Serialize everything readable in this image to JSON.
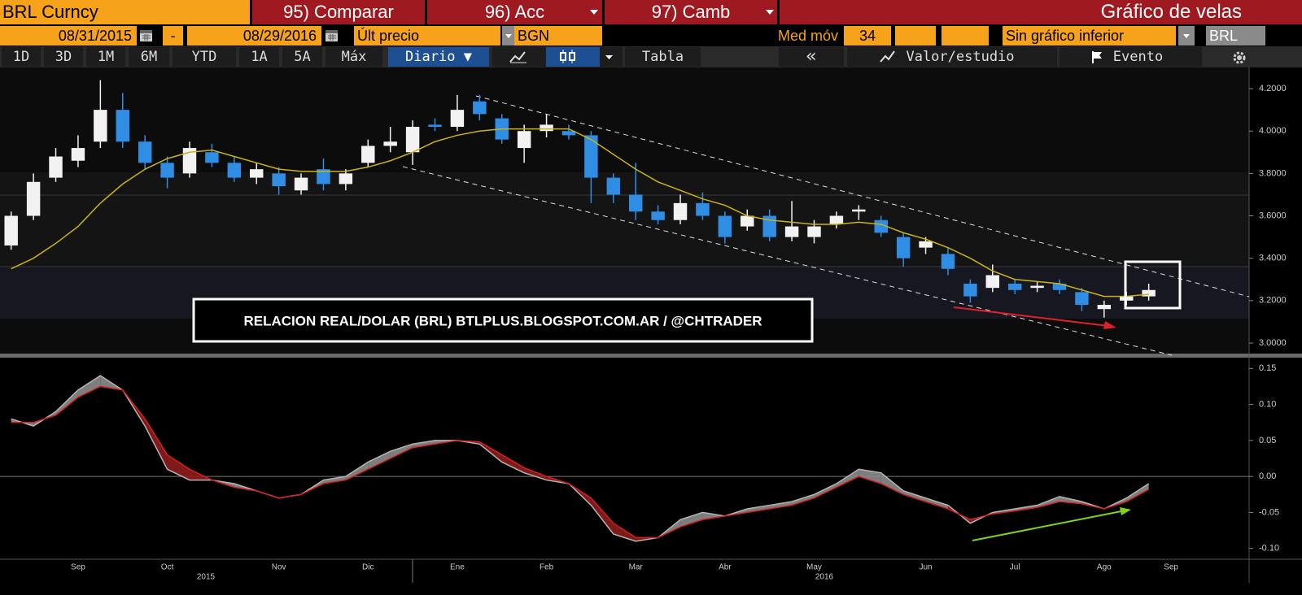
{
  "toolbar": {
    "security": "BRL Curncy",
    "menu": [
      "95) Comparar",
      "96) Acc",
      "97) Camb"
    ],
    "title": "Gráfico de velas",
    "start_date": "08/31/2015",
    "date_sep": "-",
    "end_date": "08/29/2016",
    "field": "Últ precio",
    "source": "BGN",
    "ma_label": "Med móv",
    "ma_period": "34",
    "lower": "Sin gráfico inferior",
    "ticker": "BRL",
    "periods": [
      "1D",
      "3D",
      "1M",
      "6M",
      "YTD",
      "1A",
      "5A",
      "Máx"
    ],
    "frequency": "Diario ▼",
    "table": "Tabla",
    "back": "«",
    "study": "Valor/estudio",
    "event": "Evento"
  },
  "chart_data": [
    {
      "type": "candlestick",
      "annotation": "RELACION REAL/DOLAR (BRL) BTLPLUS.BLOGSPOT.COM.AR / @CHTRADER",
      "open": [
        3.46,
        3.6,
        3.78,
        3.86,
        3.95,
        4.1,
        3.95,
        3.85,
        3.8,
        3.9,
        3.85,
        3.78,
        3.8,
        3.72,
        3.82,
        3.75,
        3.85,
        3.93,
        3.9,
        4.03,
        4.02,
        4.14,
        4.06,
        3.92,
        4.0,
        4.0,
        3.98,
        3.78,
        3.7,
        3.62,
        3.58,
        3.66,
        3.6,
        3.55,
        3.6,
        3.5,
        3.5,
        3.56,
        3.62,
        3.58,
        3.5,
        3.45,
        3.42,
        3.28,
        3.26,
        3.28,
        3.26,
        3.28,
        3.24,
        3.16,
        3.2,
        3.22,
        null,
        null,
        null,
        null
      ],
      "high": [
        3.62,
        3.8,
        3.92,
        3.98,
        4.24,
        4.18,
        3.98,
        3.88,
        3.95,
        3.94,
        3.88,
        3.85,
        3.83,
        3.8,
        3.87,
        3.82,
        3.96,
        4.02,
        4.05,
        4.06,
        4.17,
        4.17,
        4.08,
        4.03,
        4.08,
        4.03,
        4.0,
        3.8,
        3.85,
        3.65,
        3.7,
        3.71,
        3.62,
        3.63,
        3.63,
        3.67,
        3.58,
        3.62,
        3.65,
        3.6,
        3.52,
        3.5,
        3.45,
        3.3,
        3.37,
        3.3,
        3.29,
        3.3,
        3.26,
        3.2,
        3.24,
        3.28,
        null,
        null,
        null,
        null
      ],
      "low": [
        3.44,
        3.58,
        3.76,
        3.83,
        3.92,
        3.92,
        3.82,
        3.73,
        3.78,
        3.83,
        3.76,
        3.75,
        3.7,
        3.7,
        3.72,
        3.72,
        3.83,
        3.9,
        3.84,
        4.0,
        4.0,
        4.05,
        3.94,
        3.85,
        3.97,
        3.96,
        3.66,
        3.66,
        3.58,
        3.56,
        3.56,
        3.58,
        3.47,
        3.53,
        3.48,
        3.48,
        3.47,
        3.54,
        3.58,
        3.5,
        3.36,
        3.42,
        3.32,
        3.19,
        3.24,
        3.23,
        3.24,
        3.23,
        3.15,
        3.12,
        3.18,
        3.2,
        null,
        null,
        null,
        null
      ],
      "close": [
        3.6,
        3.76,
        3.88,
        3.92,
        4.1,
        3.95,
        3.85,
        3.78,
        3.92,
        3.85,
        3.78,
        3.82,
        3.74,
        3.78,
        3.75,
        3.8,
        3.93,
        3.95,
        4.02,
        4.02,
        4.1,
        4.08,
        3.96,
        4.0,
        4.03,
        3.98,
        3.78,
        3.7,
        3.62,
        3.58,
        3.66,
        3.6,
        3.5,
        3.6,
        3.5,
        3.55,
        3.55,
        3.6,
        3.63,
        3.52,
        3.4,
        3.48,
        3.35,
        3.22,
        3.32,
        3.25,
        3.27,
        3.25,
        3.18,
        3.18,
        3.22,
        3.25,
        null,
        null,
        null,
        null
      ],
      "up_color": "#f2f2f2",
      "down_color": "#2f8de4",
      "overlays": [
        {
          "color": "#c9b21a",
          "values": [
            3.35,
            3.4,
            3.47,
            3.55,
            3.66,
            3.75,
            3.82,
            3.87,
            3.9,
            3.91,
            3.88,
            3.85,
            3.82,
            3.81,
            3.81,
            3.81,
            3.83,
            3.86,
            3.9,
            3.95,
            3.98,
            4.0,
            4.01,
            4.01,
            4.01,
            4.01,
            3.96,
            3.89,
            3.82,
            3.76,
            3.72,
            3.68,
            3.65,
            3.6,
            3.58,
            3.57,
            3.56,
            3.56,
            3.57,
            3.56,
            3.52,
            3.49,
            3.45,
            3.4,
            3.34,
            3.3,
            3.29,
            3.28,
            3.25,
            3.22,
            3.22,
            3.23,
            null,
            null,
            null,
            null
          ]
        }
      ],
      "ylim": [
        2.95,
        4.3
      ],
      "yticks": [
        {
          "value": 4.2,
          "label": "4.2000"
        },
        {
          "value": 4.0,
          "label": "4.0000"
        },
        {
          "value": 3.8,
          "label": "3.8000"
        },
        {
          "value": 3.6,
          "label": "3.6000"
        },
        {
          "value": 3.4,
          "label": "3.4000"
        },
        {
          "value": 3.2,
          "label": "3.2000"
        },
        {
          "value": 3.0,
          "label": "3.0000"
        }
      ]
    },
    {
      "type": "line",
      "categories": [
        null,
        null,
        null,
        "Sep",
        null,
        null,
        null,
        "Oct",
        null,
        null,
        null,
        null,
        "Nov",
        null,
        null,
        null,
        "Dic",
        null,
        null,
        null,
        "Ene",
        null,
        null,
        null,
        "Feb",
        null,
        null,
        null,
        "Mar",
        null,
        null,
        null,
        "Abr",
        null,
        null,
        null,
        "May",
        null,
        null,
        null,
        null,
        "Jun",
        null,
        null,
        null,
        "Jul",
        null,
        null,
        null,
        "Ago",
        null,
        null,
        "Sep",
        null,
        null,
        null
      ],
      "year_labels": [
        "2015",
        "2016"
      ],
      "series": [
        {
          "color": "#b4b4b4",
          "values": [
            0.08,
            0.07,
            0.09,
            0.12,
            0.14,
            0.12,
            0.07,
            0.01,
            -0.005,
            -0.005,
            -0.01,
            -0.02,
            -0.03,
            -0.025,
            -0.005,
            0.0,
            0.02,
            0.035,
            0.045,
            0.05,
            0.05,
            0.045,
            0.02,
            0.005,
            -0.005,
            -0.01,
            -0.04,
            -0.08,
            -0.09,
            -0.085,
            -0.06,
            -0.05,
            -0.055,
            -0.045,
            -0.04,
            -0.035,
            -0.025,
            -0.01,
            0.01,
            0.005,
            -0.02,
            -0.03,
            -0.04,
            -0.065,
            -0.05,
            -0.045,
            -0.04,
            -0.028,
            -0.035,
            -0.045,
            -0.03,
            -0.01,
            null,
            null,
            null,
            null
          ]
        },
        {
          "color": "#d42020",
          "values": [
            0.075,
            0.075,
            0.085,
            0.11,
            0.125,
            0.12,
            0.08,
            0.03,
            0.01,
            -0.005,
            -0.015,
            -0.02,
            -0.03,
            -0.025,
            -0.01,
            -0.005,
            0.01,
            0.025,
            0.04,
            0.045,
            0.05,
            0.048,
            0.03,
            0.012,
            0.0,
            -0.01,
            -0.03,
            -0.065,
            -0.085,
            -0.085,
            -0.07,
            -0.06,
            -0.055,
            -0.05,
            -0.045,
            -0.04,
            -0.03,
            -0.015,
            0.0,
            -0.01,
            -0.025,
            -0.035,
            -0.045,
            -0.06,
            -0.052,
            -0.048,
            -0.043,
            -0.035,
            -0.038,
            -0.045,
            -0.035,
            -0.018,
            null,
            null,
            null,
            null
          ]
        }
      ],
      "fill_between": true,
      "reference_line": 0,
      "ylim": [
        -0.115,
        0.165
      ],
      "yticks": [
        0.15,
        {
          "value": 0.1,
          "label": "0.10"
        },
        0.05,
        {
          "value": 0,
          "label": "0.00"
        },
        -0.05,
        {
          "value": -0.1,
          "label": "-0.10"
        }
      ]
    }
  ]
}
